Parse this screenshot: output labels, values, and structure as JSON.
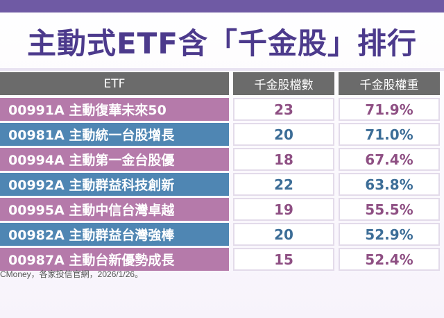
{
  "title": "主動式ETF含「千金股」排行",
  "table": {
    "headers": [
      "ETF",
      "千金股檔數",
      "千金股權重"
    ],
    "rows": [
      {
        "etf": "00991A 主動復華未來50",
        "count": "23",
        "weight": "71.9%"
      },
      {
        "etf": "00981A 主動統一台股增長",
        "count": "20",
        "weight": "71.0%"
      },
      {
        "etf": "00994A 主動第一金台股優",
        "count": "18",
        "weight": "67.4%"
      },
      {
        "etf": "00992A 主動群益科技創新",
        "count": "22",
        "weight": "63.8%"
      },
      {
        "etf": "00995A 主動中信台灣卓越",
        "count": "19",
        "weight": "55.5%"
      },
      {
        "etf": "00982A 主動群益台灣強棒",
        "count": "20",
        "weight": "52.9%"
      },
      {
        "etf": "00987A 主動台新優勢成長",
        "count": "15",
        "weight": "52.4%"
      }
    ]
  },
  "source": "CMoney，各家投信官網，2026/1/26。",
  "colors": {
    "accent_purple": "#b57aaa",
    "accent_blue": "#4f86b3",
    "title": "#4c3a8c",
    "header_gray": "#6b6b6b"
  }
}
